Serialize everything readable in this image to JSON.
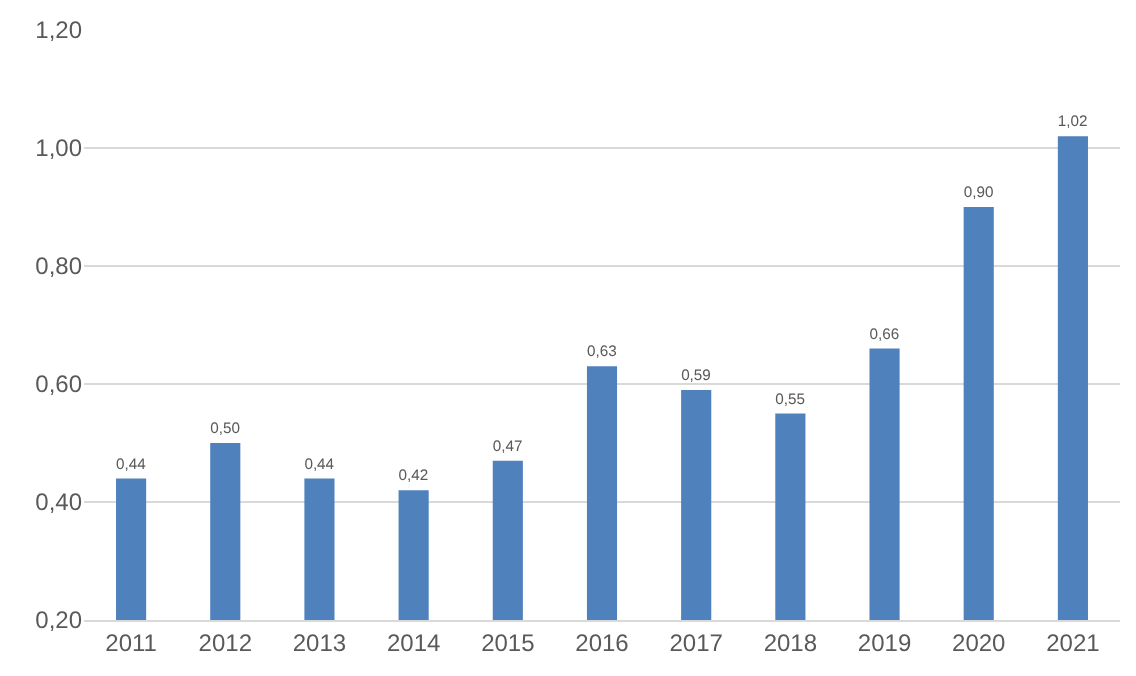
{
  "chart_data": {
    "type": "bar",
    "categories": [
      "2011",
      "2012",
      "2013",
      "2014",
      "2015",
      "2016",
      "2017",
      "2018",
      "2019",
      "2020",
      "2021"
    ],
    "values": [
      0.44,
      0.5,
      0.44,
      0.42,
      0.47,
      0.63,
      0.59,
      0.55,
      0.66,
      0.9,
      1.02
    ],
    "value_labels": [
      "0,44",
      "0,50",
      "0,44",
      "0,42",
      "0,47",
      "0,63",
      "0,59",
      "0,55",
      "0,66",
      "0,90",
      "1,02"
    ],
    "color": "#4f81bd",
    "ylim": [
      0.2,
      1.2
    ],
    "yticks": [
      {
        "value": 0.2,
        "label": "0,20"
      },
      {
        "value": 0.4,
        "label": "0,40"
      },
      {
        "value": 0.6,
        "label": "0,60"
      },
      {
        "value": 0.8,
        "label": "0,80"
      },
      {
        "value": 1.0,
        "label": "1,00"
      },
      {
        "value": 1.2,
        "label": "1,20"
      }
    ],
    "grid": "y"
  }
}
